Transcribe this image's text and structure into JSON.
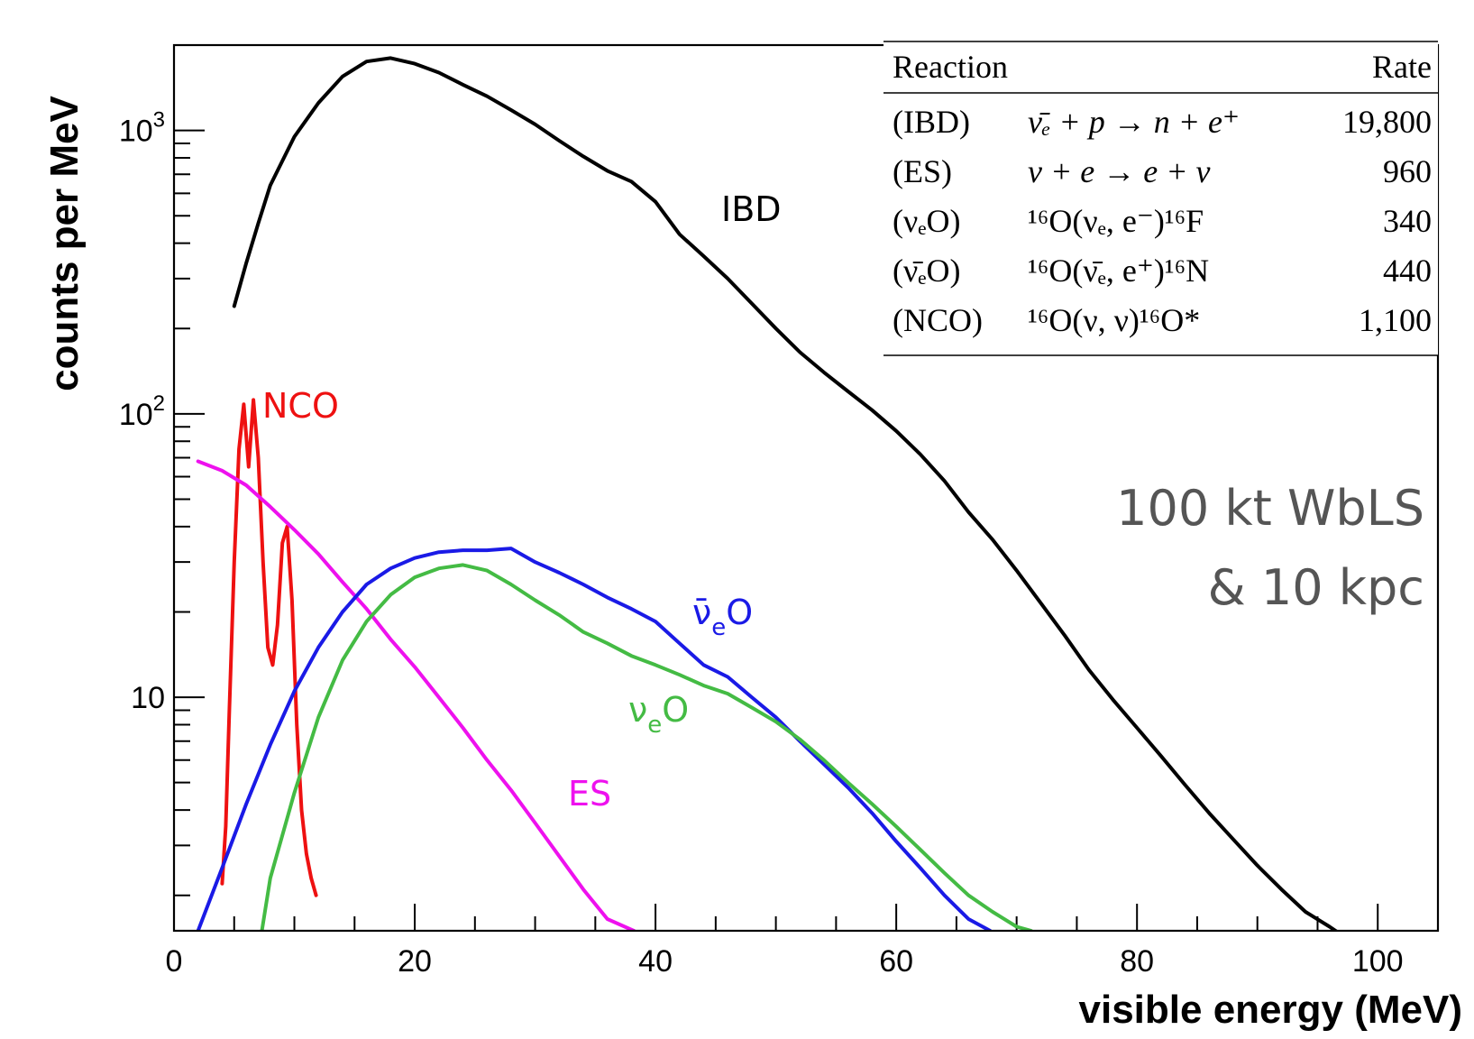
{
  "chart_data": {
    "type": "line",
    "xlabel": "visible energy (MeV)",
    "ylabel": "counts per MeV",
    "xlim": [
      0,
      105
    ],
    "ylim": [
      1.5,
      2000
    ],
    "yscale": "log",
    "grid": false,
    "x_ticks": [
      "0",
      "20",
      "40",
      "60",
      "80",
      "100"
    ],
    "y_ticks": [
      {
        "value": 10,
        "base": "10",
        "exp": ""
      },
      {
        "value": 100,
        "base": "10",
        "exp": "2"
      },
      {
        "value": 1000,
        "base": "10",
        "exp": "3"
      }
    ],
    "series": [
      {
        "name": "IBD",
        "color": "#000000",
        "x": [
          5,
          6,
          7,
          8,
          10,
          12,
          14,
          16,
          18,
          20,
          22,
          24,
          26,
          28,
          30,
          32,
          34,
          36,
          38,
          40,
          42,
          44,
          46,
          48,
          50,
          52,
          54,
          56,
          58,
          60,
          62,
          64,
          66,
          68,
          70,
          72,
          74,
          76,
          78,
          80,
          82,
          84,
          86,
          88,
          90,
          92,
          94,
          96,
          97,
          98,
          99
        ],
        "y": [
          240,
          340,
          470,
          640,
          950,
          1250,
          1550,
          1750,
          1800,
          1720,
          1600,
          1450,
          1320,
          1180,
          1050,
          920,
          810,
          720,
          660,
          560,
          430,
          360,
          300,
          245,
          200,
          165,
          140,
          120,
          103,
          87,
          72,
          58,
          45,
          36,
          28,
          21.5,
          16.5,
          12.5,
          9.8,
          7.8,
          6.2,
          4.9,
          3.9,
          3.15,
          2.55,
          2.1,
          1.75,
          1.55,
          1.45,
          1.3,
          1.15
        ]
      },
      {
        "name": "NCO",
        "color": "#ee1111",
        "x": [
          4.0,
          4.3,
          4.6,
          5.0,
          5.4,
          5.8,
          6.2,
          6.6,
          7.0,
          7.4,
          7.8,
          8.2,
          8.6,
          9.0,
          9.4,
          9.8,
          10.2,
          10.6,
          11.0,
          11.4,
          11.8
        ],
        "y": [
          2.2,
          3.5,
          9,
          30,
          75,
          108,
          65,
          112,
          70,
          30,
          15,
          13,
          18,
          35,
          40,
          22,
          8,
          4,
          2.8,
          2.3,
          2.0
        ]
      },
      {
        "name": "ES",
        "color": "#ee11ee",
        "x": [
          2,
          4,
          6,
          8,
          10,
          12,
          14,
          16,
          18,
          20,
          22,
          24,
          26,
          28,
          30,
          32,
          34,
          36,
          38.2
        ],
        "y": [
          68,
          63,
          56,
          47,
          39,
          32,
          25.5,
          20.5,
          16,
          12.8,
          10,
          7.8,
          6,
          4.7,
          3.6,
          2.75,
          2.1,
          1.65,
          1.5
        ]
      },
      {
        "name": "ν̄ₑO",
        "color": "#1a1ae6",
        "x": [
          2,
          4,
          6,
          8,
          10,
          12,
          14,
          16,
          18,
          20,
          22,
          24,
          26,
          28,
          30,
          32,
          34,
          36,
          38,
          40,
          42,
          44,
          46,
          48,
          50,
          52,
          54,
          56,
          58,
          60,
          62,
          64,
          66,
          67.8
        ],
        "y": [
          1.5,
          2.5,
          4.2,
          6.8,
          10.5,
          15,
          20,
          25,
          28.5,
          31,
          32.5,
          33,
          33,
          33.5,
          30,
          27.5,
          25,
          22.5,
          20.5,
          18.5,
          15.5,
          13,
          11.8,
          10,
          8.5,
          7,
          5.8,
          4.8,
          3.9,
          3.1,
          2.5,
          2.0,
          1.65,
          1.5
        ]
      },
      {
        "name": "νₑO",
        "color": "#44bb44",
        "x": [
          7.3,
          8,
          10,
          12,
          14,
          16,
          18,
          20,
          22,
          24,
          26,
          28,
          30,
          32,
          34,
          36,
          38,
          40,
          42,
          44,
          46,
          48,
          50,
          52,
          54,
          56,
          58,
          60,
          62,
          64,
          66,
          68,
          70,
          71.2
        ],
        "y": [
          1.5,
          2.3,
          4.6,
          8.5,
          13.5,
          18.5,
          23,
          26.5,
          28.5,
          29.3,
          28,
          25,
          22,
          19.5,
          17,
          15.5,
          14,
          13,
          12,
          11,
          10.3,
          9.2,
          8.2,
          7.1,
          6.0,
          5.0,
          4.2,
          3.5,
          2.9,
          2.4,
          2.0,
          1.75,
          1.55,
          1.5
        ]
      }
    ],
    "curve_labels": [
      {
        "key": "IBD",
        "text": "IBD",
        "color": "#000000"
      },
      {
        "key": "NCO",
        "text": "NCO",
        "color": "#ee1111"
      },
      {
        "key": "ES",
        "text": "ES",
        "color": "#ee11ee"
      },
      {
        "key": "anue",
        "base": "ν̄",
        "sub": "e",
        "tail": "O",
        "color": "#1a1ae6"
      },
      {
        "key": "nue",
        "base": "ν",
        "sub": "e",
        "tail": "O",
        "color": "#44bb44"
      }
    ],
    "rate_table": {
      "header": {
        "reaction": "Reaction",
        "rate": "Rate"
      },
      "rows": [
        {
          "tag": "(IBD)",
          "reaction": "ν̄ₑ + p → n + e⁺",
          "rate": "19,800"
        },
        {
          "tag": "(ES)",
          "reaction": "ν + e → e + ν",
          "rate": "960"
        },
        {
          "tag": "(νₑO)",
          "reaction": "¹⁶O(νₑ, e⁻)¹⁶F",
          "rate": "340"
        },
        {
          "tag": "(ν̄ₑO)",
          "reaction": "¹⁶O(ν̄ₑ, e⁺)¹⁶N",
          "rate": "440"
        },
        {
          "tag": "(NCO)",
          "reaction": "¹⁶O(ν, ν)¹⁶O*",
          "rate": "1,100"
        }
      ]
    },
    "annotation": [
      "100 kt WbLS",
      "& 10 kpc"
    ]
  }
}
